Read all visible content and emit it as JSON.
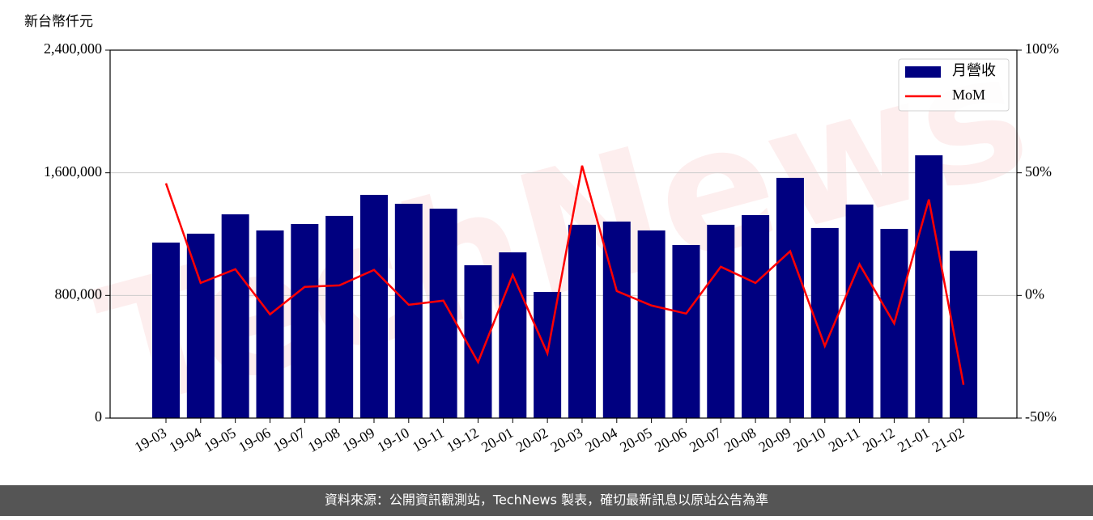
{
  "chart_data": {
    "type": "bar_line",
    "ylabel": "新台幣仟元",
    "watermark": "TechNews",
    "categories": [
      "19-03",
      "19-04",
      "19-05",
      "19-06",
      "19-07",
      "19-08",
      "19-09",
      "19-10",
      "19-11",
      "19-12",
      "20-01",
      "20-02",
      "20-03",
      "20-04",
      "20-05",
      "20-06",
      "20-07",
      "20-08",
      "20-09",
      "20-10",
      "20-11",
      "20-12",
      "21-01",
      "21-02"
    ],
    "series": [
      {
        "name": "月營收",
        "color": "#000080",
        "type": "bar",
        "values": [
          1145000,
          1203000,
          1329000,
          1224000,
          1266000,
          1319000,
          1456000,
          1398000,
          1366000,
          997000,
          1081000,
          823000,
          1261000,
          1282000,
          1224000,
          1129000,
          1261000,
          1324000,
          1567000,
          1240000,
          1393000,
          1234000,
          1714000,
          1092000
        ]
      },
      {
        "name": "MoM",
        "color": "#ff0000",
        "type": "line",
        "axis": "y2",
        "values": [
          45.7,
          5.1,
          10.7,
          -7.7,
          3.5,
          4.1,
          10.4,
          -3.8,
          -2.1,
          -27.2,
          8.4,
          -23.6,
          52.9,
          1.8,
          -4.1,
          -7.4,
          11.7,
          5.1,
          18.0,
          -20.6,
          12.7,
          -11.4,
          39.1,
          -36.4
        ]
      }
    ],
    "ylim": [
      0,
      2400000
    ],
    "yticks": [
      0,
      {
        "value": 800000,
        "label": "800,000"
      },
      {
        "value": 1600000,
        "label": "1,600,000"
      },
      {
        "value": 2400000,
        "label": "2,400,000"
      }
    ],
    "y2lim": [
      -50,
      100
    ],
    "y2ticks": [
      {
        "value": -50,
        "label": "-50%"
      },
      {
        "value": 0,
        "label": "0%"
      },
      {
        "value": 50,
        "label": "50%"
      },
      {
        "value": 100,
        "label": "100%"
      }
    ],
    "grid": true,
    "legend": "upper right"
  },
  "footer": "資料來源：公開資訊觀測站，TechNews 製表，確切最新訊息以原站公告為準"
}
